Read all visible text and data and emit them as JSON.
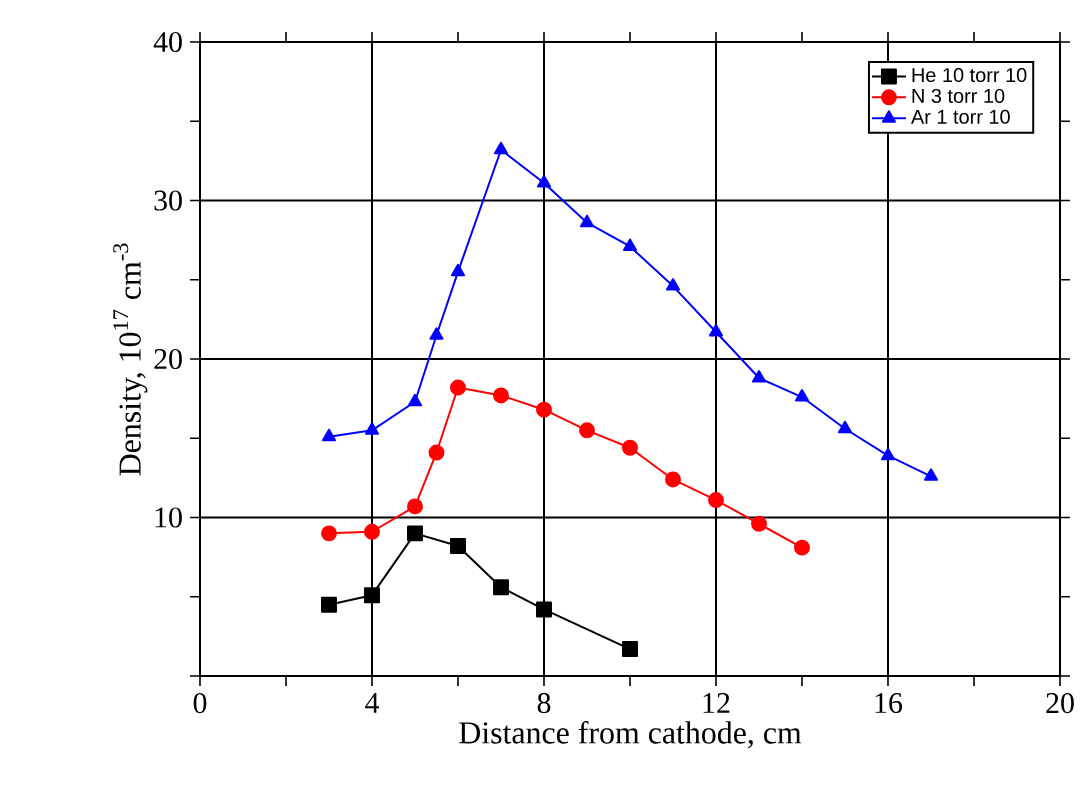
{
  "chart_data": {
    "type": "line",
    "xlabel": "Distance from cathode, cm",
    "ylabel": "Density, 10$^{17}$ cm$^{-3}$",
    "xlim": [
      0,
      20
    ],
    "ylim": [
      0,
      40
    ],
    "xticks": [
      0,
      {
        "value": 2,
        "label": null
      },
      4,
      {
        "value": 6,
        "label": null
      },
      8,
      {
        "value": 10,
        "label": null
      },
      12,
      {
        "value": 14,
        "label": null
      },
      16,
      {
        "value": 18,
        "label": null
      },
      20
    ],
    "yticks": [
      {
        "value": 0,
        "label": null
      },
      {
        "value": 5,
        "label": null
      },
      10,
      {
        "value": 15,
        "label": null
      },
      20,
      {
        "value": 25,
        "label": null
      },
      30,
      {
        "value": 35,
        "label": null
      },
      40
    ],
    "grid": true,
    "legend": "top right",
    "series": [
      {
        "name": "He 10 torr 10",
        "color": "#000000",
        "marker": "square",
        "x": [
          3,
          4,
          5,
          6,
          7,
          8,
          10
        ],
        "values": [
          4.5,
          5.1,
          9.0,
          8.2,
          5.6,
          4.2,
          1.7
        ]
      },
      {
        "name": "N 3 torr 10",
        "color": "#ff0000",
        "marker": "circle",
        "x": [
          3,
          4,
          5,
          5.5,
          6,
          7,
          8,
          9,
          10,
          11,
          12,
          13,
          14
        ],
        "values": [
          9.0,
          9.1,
          10.7,
          14.1,
          18.2,
          17.7,
          16.8,
          15.5,
          14.4,
          12.4,
          11.1,
          9.6,
          8.1
        ]
      },
      {
        "name": "Ar 1 torr 10",
        "color": "#0000ff",
        "marker": "triangle",
        "x": [
          3,
          4,
          5,
          5.5,
          6,
          7,
          8,
          9,
          10,
          11,
          12,
          13,
          14,
          15,
          16,
          17
        ],
        "values": [
          15.1,
          15.5,
          17.3,
          21.5,
          25.5,
          33.2,
          31.1,
          28.6,
          27.1,
          24.6,
          21.7,
          18.8,
          17.6,
          15.6,
          13.9,
          12.6
        ]
      }
    ]
  }
}
